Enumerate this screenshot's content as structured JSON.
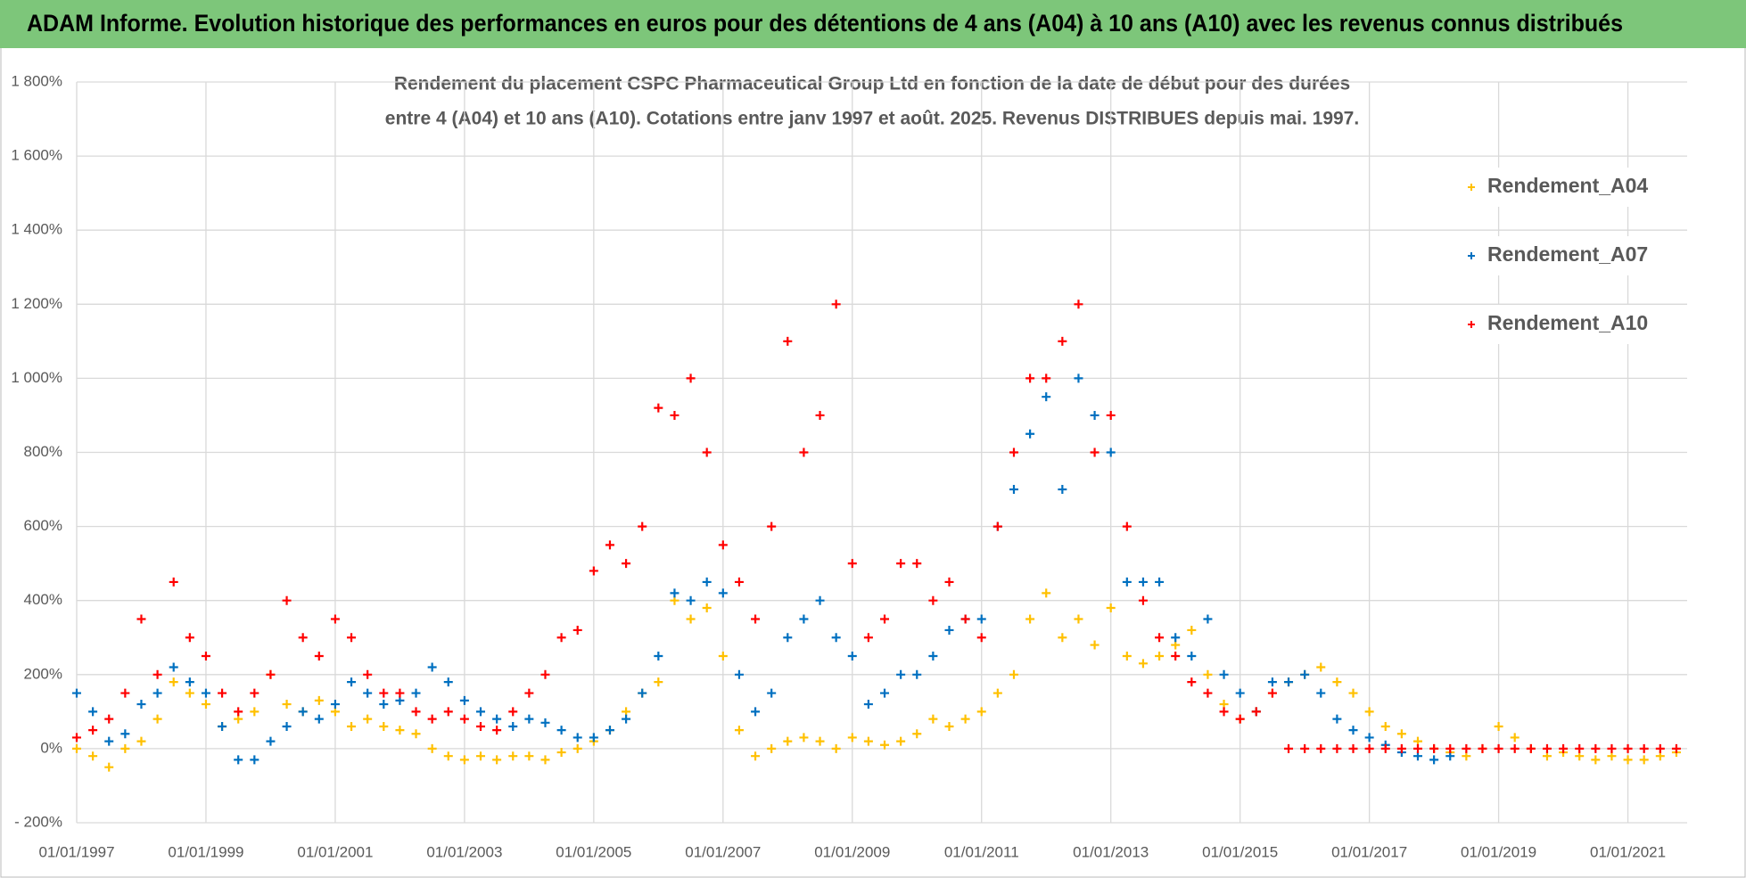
{
  "header": {
    "title": "ADAM Informe. Evolution historique des performances en euros pour des détentions de 4 ans (A04) à 10 ans (A10) avec les revenus connus distribués"
  },
  "chart_data": {
    "type": "scatter",
    "title": [
      "Rendement du placement CSPC Pharmaceutical Group Ltd en fonction de la date de début pour des durées",
      "entre 4 (A04) et 10 ans (A10).  Cotations entre janv 1997 et août. 2025. Revenus DISTRIBUES depuis mai. 1997."
    ],
    "x": [
      "01/01/1997",
      "01/04/1997",
      "01/07/1997",
      "01/10/1997",
      "01/01/1998",
      "01/04/1998",
      "01/07/1998",
      "01/10/1998",
      "01/01/1999",
      "01/04/1999",
      "01/07/1999",
      "01/10/1999",
      "01/01/2000",
      "01/04/2000",
      "01/07/2000",
      "01/10/2000",
      "01/01/2001",
      "01/04/2001",
      "01/07/2001",
      "01/10/2001",
      "01/01/2002",
      "01/04/2002",
      "01/07/2002",
      "01/10/2002",
      "01/01/2003",
      "01/04/2003",
      "01/07/2003",
      "01/10/2003",
      "01/01/2004",
      "01/04/2004",
      "01/07/2004",
      "01/10/2004",
      "01/01/2005",
      "01/04/2005",
      "01/07/2005",
      "01/10/2005",
      "01/01/2006",
      "01/04/2006",
      "01/07/2006",
      "01/10/2006",
      "01/01/2007",
      "01/04/2007",
      "01/07/2007",
      "01/10/2007",
      "01/01/2008",
      "01/04/2008",
      "01/07/2008",
      "01/10/2008",
      "01/01/2009",
      "01/04/2009",
      "01/07/2009",
      "01/10/2009",
      "01/01/2010",
      "01/04/2010",
      "01/07/2010",
      "01/10/2010",
      "01/01/2011",
      "01/04/2011",
      "01/07/2011",
      "01/10/2011",
      "01/01/2012",
      "01/04/2012",
      "01/07/2012",
      "01/10/2012",
      "01/01/2013",
      "01/04/2013",
      "01/07/2013",
      "01/10/2013",
      "01/01/2014",
      "01/04/2014",
      "01/07/2014",
      "01/10/2014",
      "01/01/2015",
      "01/04/2015",
      "01/07/2015",
      "01/10/2015",
      "01/01/2016",
      "01/04/2016",
      "01/07/2016",
      "01/10/2016",
      "01/01/2017",
      "01/04/2017",
      "01/07/2017",
      "01/10/2017",
      "01/01/2018",
      "01/04/2018",
      "01/07/2018",
      "01/10/2018",
      "01/01/2019",
      "01/04/2019",
      "01/07/2019",
      "01/10/2019",
      "01/01/2020",
      "01/04/2020",
      "01/07/2020",
      "01/10/2020",
      "01/01/2021",
      "01/04/2021",
      "01/07/2021",
      "01/10/2021"
    ],
    "series": [
      {
        "name": "Rendement_A04",
        "color": "#ffc000",
        "values": [
          0,
          -20,
          -50,
          0,
          20,
          80,
          180,
          150,
          120,
          60,
          80,
          100,
          200,
          120,
          100,
          130,
          100,
          60,
          80,
          60,
          50,
          40,
          0,
          -20,
          -30,
          -20,
          -30,
          -20,
          -20,
          -30,
          -10,
          0,
          20,
          50,
          100,
          150,
          180,
          400,
          350,
          380,
          250,
          50,
          -20,
          0,
          20,
          30,
          20,
          0,
          30,
          20,
          10,
          20,
          40,
          80,
          60,
          80,
          100,
          150,
          200,
          350,
          420,
          300,
          350,
          280,
          380,
          250,
          230,
          250,
          280,
          320,
          200,
          120,
          80,
          100,
          150,
          180,
          200,
          220,
          180,
          150,
          100,
          60,
          40,
          20,
          0,
          -10,
          -20,
          0,
          60,
          30,
          0,
          -20,
          -10,
          -20,
          -30,
          -20,
          -30,
          -30,
          -20,
          -10
        ]
      },
      {
        "name": "Rendement_A07",
        "color": "#0070c0",
        "values": [
          150,
          100,
          20,
          40,
          120,
          150,
          220,
          180,
          150,
          60,
          -30,
          -30,
          20,
          60,
          100,
          80,
          120,
          180,
          150,
          120,
          130,
          150,
          220,
          180,
          130,
          100,
          80,
          60,
          80,
          70,
          50,
          30,
          30,
          50,
          80,
          150,
          250,
          420,
          400,
          450,
          420,
          200,
          100,
          150,
          300,
          350,
          400,
          300,
          250,
          120,
          150,
          200,
          200,
          250,
          320,
          350,
          350,
          600,
          700,
          850,
          950,
          700,
          1000,
          900,
          800,
          450,
          450,
          450,
          300,
          250,
          350,
          200,
          150,
          100,
          180,
          180,
          200,
          150,
          80,
          50,
          30,
          10,
          -10,
          -20,
          -30,
          -20,
          null,
          null,
          null,
          null,
          null,
          null,
          null,
          null,
          null,
          null,
          null,
          null,
          null,
          null
        ]
      },
      {
        "name": "Rendement_A10",
        "color": "#ff0000",
        "values": [
          30,
          50,
          80,
          150,
          350,
          200,
          450,
          300,
          250,
          150,
          100,
          150,
          200,
          400,
          300,
          250,
          350,
          300,
          200,
          150,
          150,
          100,
          80,
          100,
          80,
          60,
          50,
          100,
          150,
          200,
          300,
          320,
          480,
          550,
          500,
          600,
          920,
          900,
          1000,
          800,
          550,
          450,
          350,
          600,
          1100,
          800,
          900,
          1200,
          500,
          300,
          350,
          500,
          500,
          400,
          450,
          350,
          300,
          600,
          800,
          1000,
          1000,
          1100,
          1200,
          800,
          900,
          600,
          400,
          300,
          250,
          180,
          150,
          100,
          80,
          100,
          150,
          0,
          0,
          0,
          0,
          0,
          0,
          0,
          0,
          0,
          0,
          0,
          0,
          0,
          0,
          0,
          0,
          0,
          0,
          0,
          0,
          0,
          0,
          0,
          0,
          0
        ]
      }
    ],
    "xlim": [
      "01/01/1997",
      "01/12/2021"
    ],
    "xticks": [
      "01/01/1997",
      "01/01/1999",
      "01/01/2001",
      "01/01/2003",
      "01/01/2005",
      "01/01/2007",
      "01/01/2009",
      "01/01/2011",
      "01/01/2013",
      "01/01/2015",
      "01/01/2017",
      "01/01/2019",
      "01/01/2021"
    ],
    "ylim": [
      -200,
      1800
    ],
    "yticks": [
      {
        "value": -200,
        "label": "- 200%"
      },
      {
        "value": 0,
        "label": "0%"
      },
      {
        "value": 200,
        "label": "200%"
      },
      {
        "value": 400,
        "label": "400%"
      },
      {
        "value": 600,
        "label": "600%"
      },
      {
        "value": 800,
        "label": "800%"
      },
      {
        "value": 1000,
        "label": "1 000%"
      },
      {
        "value": 1200,
        "label": "1 200%"
      },
      {
        "value": 1400,
        "label": "1 400%"
      },
      {
        "value": 1600,
        "label": "1 600%"
      },
      {
        "value": 1800,
        "label": "1 800%"
      }
    ],
    "grid": true,
    "legend": "upper right"
  }
}
